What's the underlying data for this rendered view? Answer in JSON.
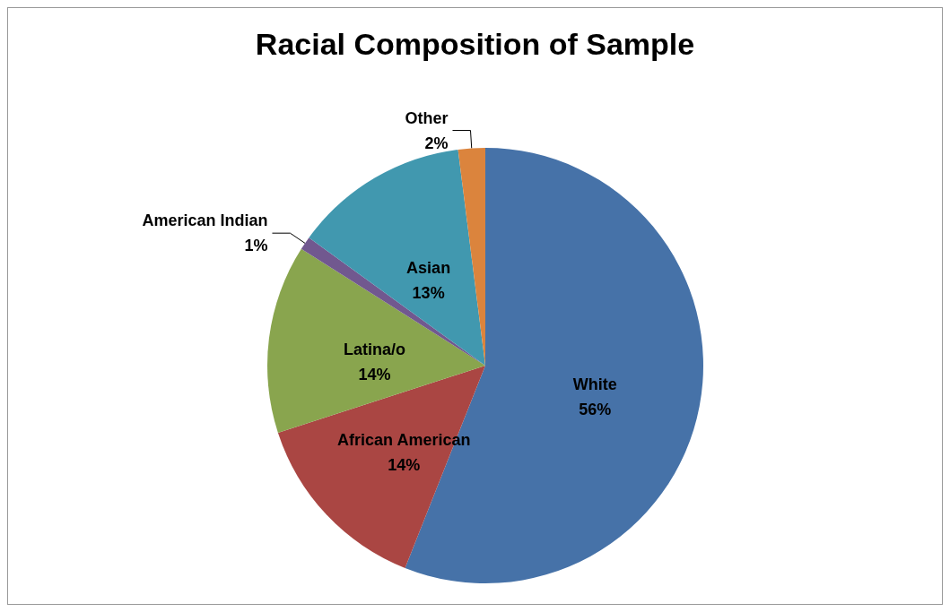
{
  "chart_data": {
    "type": "pie",
    "title": "Racial Composition of Sample",
    "categories": [
      "White",
      "African American",
      "Latina/o",
      "American Indian",
      "Asian",
      "Other"
    ],
    "values": [
      56,
      14,
      14,
      1,
      13,
      2
    ],
    "colors": [
      "#4672a8",
      "#aa4643",
      "#89a54e",
      "#71588f",
      "#4198af",
      "#db843d"
    ],
    "value_labels": [
      "56%",
      "14%",
      "14%",
      "1%",
      "13%",
      "2%"
    ],
    "legend": false
  }
}
